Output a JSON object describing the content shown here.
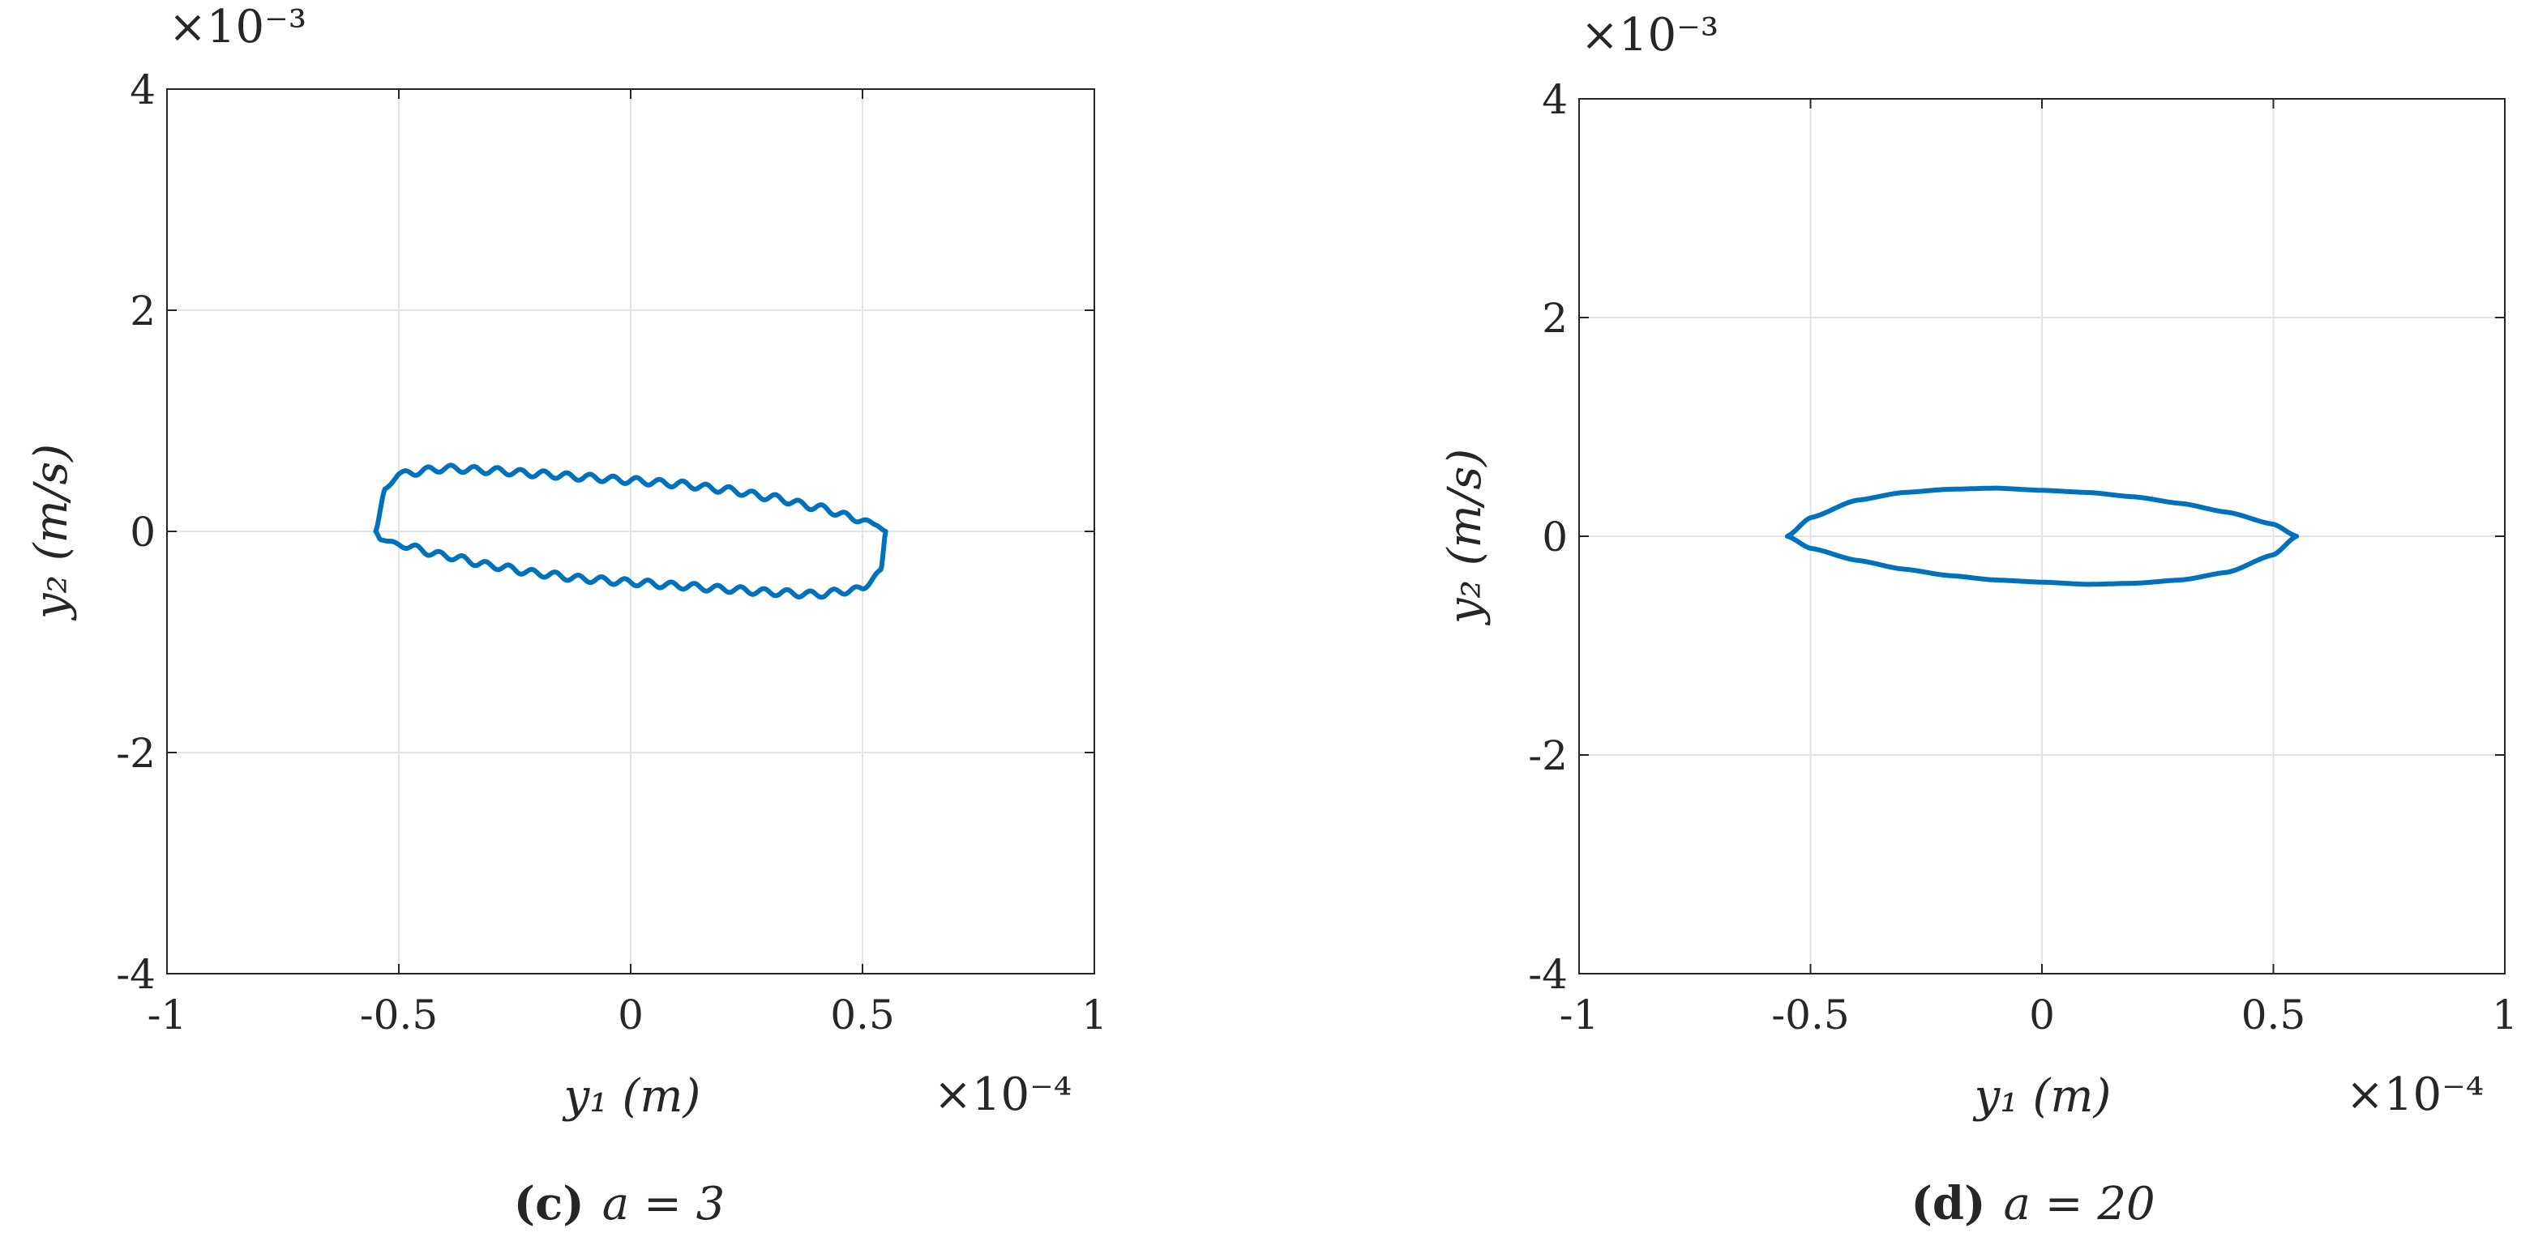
{
  "chart_data": [
    {
      "type": "line",
      "caption": {
        "letter": "(c)",
        "text": "a = 3"
      },
      "xlabel": "y₁ (m)",
      "ylabel": "y₂ (m/s)",
      "x_multiplier": "×10⁻⁴",
      "y_multiplier": "×10⁻³",
      "xlim": [
        -1,
        1
      ],
      "ylim": [
        -4,
        4
      ],
      "xticks": [
        -1,
        -0.5,
        0,
        0.5,
        1
      ],
      "xtick_labels": [
        "-1",
        "-0.5",
        "0",
        "0.5",
        "1"
      ],
      "yticks": [
        -4,
        -2,
        0,
        2,
        4
      ],
      "ytick_labels": [
        "-4",
        "-2",
        "0",
        "2",
        "4"
      ],
      "grid": true,
      "series": [
        {
          "color": "#0072BD",
          "shape": "closed orbit with small ripples",
          "ripple_amplitude": 0.03,
          "ripple_cycles": 22,
          "upper": {
            "x": [
              -0.55,
              -0.53,
              -0.5,
              -0.4,
              -0.3,
              -0.2,
              -0.1,
              0.0,
              0.1,
              0.2,
              0.3,
              0.4,
              0.5,
              0.53,
              0.55
            ],
            "y": [
              0.0,
              0.38,
              0.52,
              0.57,
              0.55,
              0.52,
              0.49,
              0.46,
              0.43,
              0.38,
              0.31,
              0.22,
              0.1,
              0.06,
              0.0
            ]
          },
          "lower": {
            "x": [
              0.55,
              0.54,
              0.5,
              0.4,
              0.3,
              0.2,
              0.1,
              0.0,
              -0.1,
              -0.2,
              -0.3,
              -0.4,
              -0.5,
              -0.54,
              -0.55
            ],
            "y": [
              0.0,
              -0.35,
              -0.52,
              -0.57,
              -0.55,
              -0.52,
              -0.49,
              -0.46,
              -0.43,
              -0.38,
              -0.31,
              -0.22,
              -0.12,
              -0.07,
              0.0
            ]
          }
        }
      ]
    },
    {
      "type": "line",
      "caption": {
        "letter": "(d)",
        "text": "a = 20"
      },
      "xlabel": "y₁ (m)",
      "ylabel": "y₂ (m/s)",
      "x_multiplier": "×10⁻⁴",
      "y_multiplier": "×10⁻³",
      "xlim": [
        -1,
        1
      ],
      "ylim": [
        -4,
        4
      ],
      "xticks": [
        -1,
        -0.5,
        0,
        0.5,
        1
      ],
      "xtick_labels": [
        "-1",
        "-0.5",
        "0",
        "0.5",
        "1"
      ],
      "yticks": [
        -4,
        -2,
        0,
        2,
        4
      ],
      "ytick_labels": [
        "-4",
        "-2",
        "0",
        "2",
        "4"
      ],
      "grid": true,
      "series": [
        {
          "color": "#0072BD",
          "shape": "smooth closed orbit",
          "ripple_amplitude": 0,
          "ripple_cycles": 0,
          "upper": {
            "x": [
              -0.55,
              -0.5,
              -0.4,
              -0.3,
              -0.2,
              -0.1,
              0.0,
              0.1,
              0.2,
              0.3,
              0.4,
              0.5,
              0.55
            ],
            "y": [
              0.0,
              0.17,
              0.33,
              0.4,
              0.43,
              0.44,
              0.42,
              0.4,
              0.36,
              0.3,
              0.22,
              0.11,
              0.0
            ]
          },
          "lower": {
            "x": [
              0.55,
              0.5,
              0.4,
              0.3,
              0.2,
              0.1,
              0.0,
              -0.1,
              -0.2,
              -0.3,
              -0.4,
              -0.5,
              -0.55
            ],
            "y": [
              0.0,
              -0.17,
              -0.33,
              -0.4,
              -0.43,
              -0.44,
              -0.42,
              -0.4,
              -0.36,
              -0.3,
              -0.22,
              -0.11,
              0.0
            ]
          }
        }
      ]
    }
  ]
}
